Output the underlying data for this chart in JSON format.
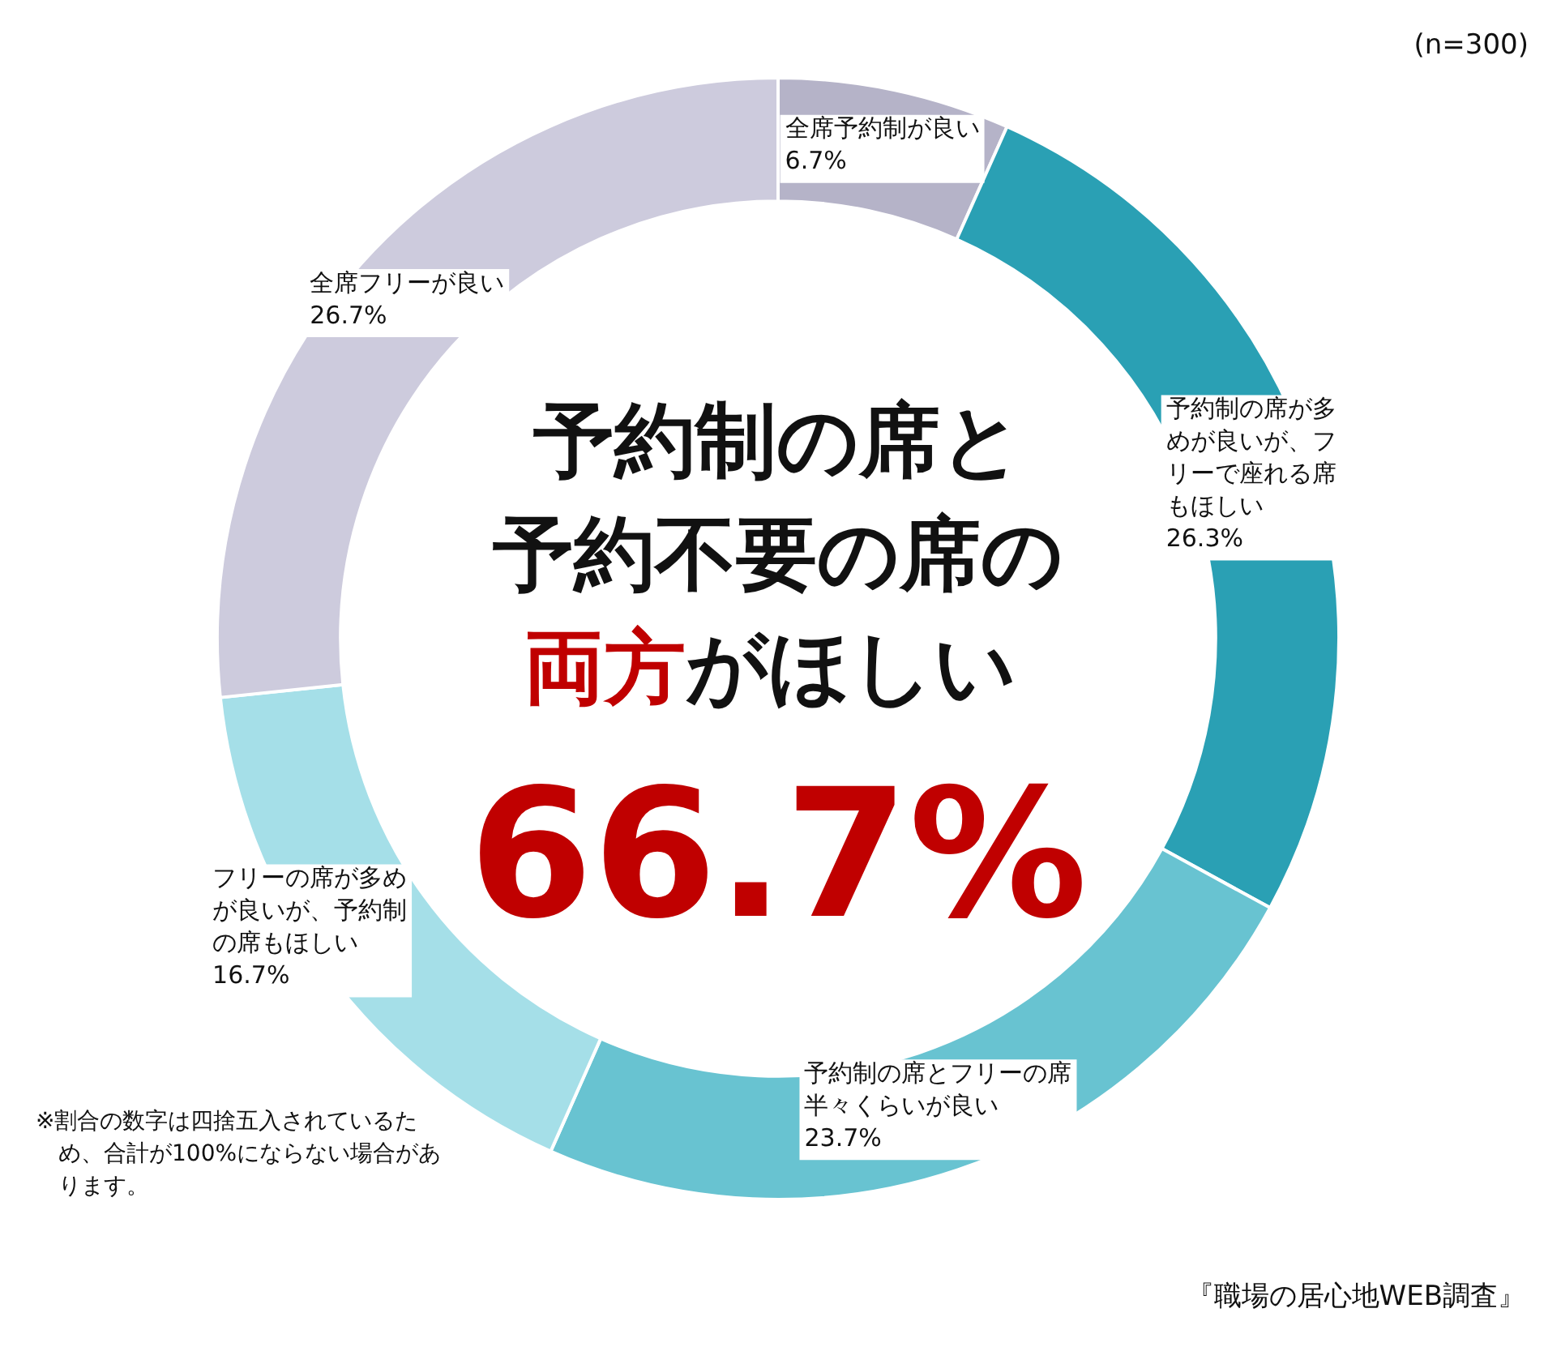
{
  "chart_data": {
    "type": "donut",
    "categories": [
      "全席予約制が良い",
      "予約制の席が多めが良いが、フリーで座れる席もほしい",
      "予約制の席とフリーの席半々くらいが良い",
      "フリーの席が多めが良いが、予約制の席もほしい",
      "全席フリーが良い"
    ],
    "values": [
      6.7,
      26.3,
      23.7,
      16.7,
      26.7
    ],
    "value_labels": [
      "6.7%",
      "26.3%",
      "23.7%",
      "16.7%",
      "26.7%"
    ],
    "colors": [
      "#b5b3c8",
      "#2aa0b4",
      "#68c3d1",
      "#a5dfe8",
      "#cdcbdd"
    ],
    "legend": false,
    "annotations": [
      "(n=300)",
      "予約制の席と",
      "予約不要の席の",
      "両方",
      "がほしい",
      "66.7%",
      "※割合の数字は四捨五入されているため、合計が100%にならない場合があります。",
      "『職場の居心地WEB調査』"
    ]
  }
}
